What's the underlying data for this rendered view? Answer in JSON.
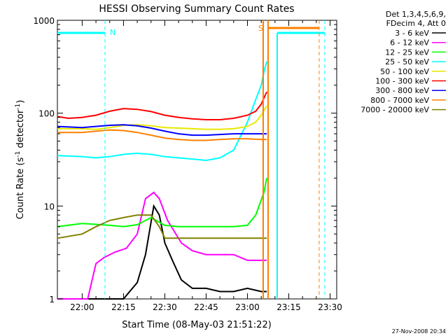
{
  "chart_data": {
    "type": "line",
    "title": "HESSI Observing Summary Count Rates",
    "xlabel": "Start Time (08-May-03 21:51:22)",
    "ylabel_main": "Count Rate (s",
    "ylabel_sup1": "-1",
    "ylabel_mid": " detector",
    "ylabel_sup2": "-1",
    "ylabel_end": ")",
    "yscale": "log",
    "ylim": [
      1,
      1000
    ],
    "xlim_minutes": [
      21.85,
      23.54
    ],
    "x_ticks": [
      "22:00",
      "22:15",
      "22:30",
      "22:45",
      "23:00",
      "23:15",
      "23:30"
    ],
    "y_ticks": [
      "1",
      "10",
      "100",
      "1000"
    ],
    "legend_header": [
      "Det 1,3,4,5,6,9,",
      "FDecim 4, Att 0"
    ],
    "legend_position": "right",
    "series": [
      {
        "name": "3 - 6 keV",
        "color": "#000000",
        "x": [
          "21:51",
          "22:05",
          "22:10",
          "22:15",
          "22:20",
          "22:23",
          "22:26",
          "22:28",
          "22:30",
          "22:33",
          "22:36",
          "22:40",
          "22:45",
          "22:50",
          "22:55",
          "23:00",
          "23:05",
          "23:07"
        ],
        "y": [
          1,
          1,
          1,
          1,
          1.5,
          3,
          10,
          8,
          4,
          2.5,
          1.6,
          1.3,
          1.3,
          1.2,
          1.2,
          1.3,
          1.2,
          1.2
        ]
      },
      {
        "name": "6 - 12 keV",
        "color": "#ff00ff",
        "x": [
          "21:51",
          "22:02",
          "22:05",
          "22:08",
          "22:12",
          "22:16",
          "22:20",
          "22:23",
          "22:26",
          "22:28",
          "22:31",
          "22:36",
          "22:40",
          "22:45",
          "22:50",
          "22:55",
          "23:00",
          "23:05",
          "23:07"
        ],
        "y": [
          1,
          1,
          2.4,
          2.8,
          3.2,
          3.5,
          5,
          12,
          14,
          12,
          7,
          4,
          3.3,
          3,
          3,
          3,
          2.6,
          2.6,
          2.6
        ]
      },
      {
        "name": "12 - 25 keV",
        "color": "#00ff00",
        "x": [
          "21:51",
          "22:00",
          "22:10",
          "22:15",
          "22:20",
          "22:25",
          "22:30",
          "22:35",
          "22:40",
          "22:45",
          "22:50",
          "22:55",
          "23:00",
          "23:03",
          "23:06",
          "23:07"
        ],
        "y": [
          6,
          6.5,
          6.2,
          6,
          6.3,
          7.5,
          6.2,
          6,
          6,
          6,
          6,
          6,
          6.2,
          8,
          14,
          20
        ]
      },
      {
        "name": "25 - 50 keV",
        "color": "#00ffff",
        "x": [
          "21:51",
          "22:00",
          "22:05",
          "22:10",
          "22:15",
          "22:20",
          "22:25",
          "22:30",
          "22:35",
          "22:40",
          "22:45",
          "22:50",
          "22:55",
          "23:00",
          "23:03",
          "23:05",
          "23:06",
          "23:07"
        ],
        "y": [
          35,
          34,
          33,
          34,
          36,
          37,
          36,
          34,
          33,
          32,
          31,
          33,
          40,
          80,
          140,
          200,
          280,
          360
        ]
      },
      {
        "name": "50 - 100 keV",
        "color": "#e8e800",
        "x": [
          "21:51",
          "22:00",
          "22:05",
          "22:10",
          "22:15",
          "22:20",
          "22:25",
          "22:30",
          "22:35",
          "22:40",
          "22:45",
          "22:50",
          "22:55",
          "23:00",
          "23:03",
          "23:05",
          "23:07"
        ],
        "y": [
          68,
          68,
          67,
          70,
          74,
          75,
          73,
          70,
          69,
          68,
          67,
          67,
          68,
          72,
          80,
          95,
          120
        ]
      },
      {
        "name": "100 - 300 keV",
        "color": "#ff0000",
        "x": [
          "21:51",
          "21:55",
          "22:00",
          "22:05",
          "22:10",
          "22:15",
          "22:20",
          "22:25",
          "22:30",
          "22:35",
          "22:40",
          "22:45",
          "22:50",
          "22:55",
          "23:00",
          "23:03",
          "23:05",
          "23:07"
        ],
        "y": [
          92,
          88,
          90,
          95,
          105,
          112,
          110,
          104,
          95,
          90,
          87,
          85,
          85,
          88,
          95,
          105,
          125,
          170
        ]
      },
      {
        "name": "300 - 800 keV",
        "color": "#0000ff",
        "x": [
          "21:51",
          "22:00",
          "22:05",
          "22:10",
          "22:15",
          "22:20",
          "22:25",
          "22:30",
          "22:35",
          "22:40",
          "22:45",
          "22:50",
          "22:55",
          "23:00",
          "23:05",
          "23:07"
        ],
        "y": [
          72,
          70,
          72,
          74,
          75,
          73,
          69,
          64,
          60,
          58,
          58,
          59,
          60,
          60,
          60,
          60
        ]
      },
      {
        "name": "800 - 7000 keV",
        "color": "#ff8000",
        "x": [
          "21:51",
          "22:00",
          "22:05",
          "22:10",
          "22:15",
          "22:20",
          "22:25",
          "22:30",
          "22:35",
          "22:40",
          "22:45",
          "22:50",
          "22:55",
          "23:00",
          "23:05",
          "23:07"
        ],
        "y": [
          62,
          62,
          64,
          66,
          65,
          62,
          58,
          54,
          52,
          51,
          51,
          52,
          53,
          53,
          52,
          52
        ]
      },
      {
        "name": "7000 - 20000 keV",
        "color": "#808000",
        "x": [
          "21:51",
          "22:00",
          "22:05",
          "22:10",
          "22:15",
          "22:20",
          "22:25",
          "22:28",
          "22:30",
          "22:35",
          "22:40",
          "22:45",
          "22:50",
          "22:55",
          "23:00",
          "23:05",
          "23:07"
        ],
        "y": [
          4.5,
          5,
          6,
          7,
          7.5,
          8,
          8,
          6,
          4.5,
          4.5,
          4.5,
          4.5,
          4.5,
          4.5,
          4.5,
          4.5,
          4.5
        ]
      }
    ],
    "annotations": [
      {
        "text": "N",
        "color": "#00ffff"
      },
      {
        "text": "S",
        "color": "#ff8000"
      }
    ],
    "footer_date": "27-Nov-2008 20:34"
  }
}
